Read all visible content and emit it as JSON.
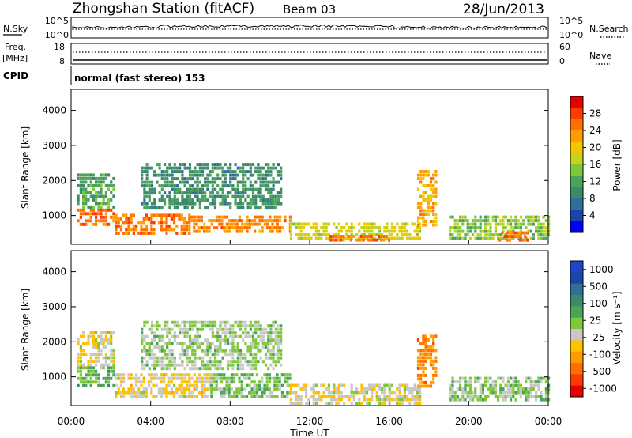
{
  "header": {
    "station": "Zhongshan Station (fitACF)",
    "beam": "Beam 03",
    "date": "28/Jun/2013"
  },
  "nsky_panel": {
    "left_label": "N.Sky",
    "right_label": "N.Search",
    "left_ticks": [
      "10^5",
      "10^0"
    ],
    "right_ticks": [
      "10^5",
      "10^0"
    ]
  },
  "freq_panel": {
    "left_label_1": "Freq.",
    "left_label_2": "[MHz]",
    "right_label": "Nave",
    "left_ticks": [
      "18",
      "8"
    ],
    "right_ticks": [
      "60",
      "0"
    ]
  },
  "cpid_panel": {
    "label": "CPID",
    "mode_text": "normal (fast stereo) 153"
  },
  "x_axis": {
    "title": "Time UT",
    "ticks": [
      "00:00",
      "04:00",
      "08:00",
      "12:00",
      "16:00",
      "20:00",
      "00:00"
    ]
  },
  "colors": {
    "power_scale": [
      "#0000ff",
      "#1a46a8",
      "#2f6f9a",
      "#3c8a66",
      "#4aa35a",
      "#7ec83a",
      "#c8d21e",
      "#f0c800",
      "#ff9c00",
      "#ff7000",
      "#ff3a00",
      "#e60000"
    ],
    "velocity_scale": [
      "#e60000",
      "#ff3a00",
      "#ff7000",
      "#ff9c00",
      "#ffc000",
      "#c8c8c8",
      "#7ec83a",
      "#4aa35a",
      "#3c8a66",
      "#2f6f9a",
      "#1a46a8",
      "#2244cc"
    ]
  },
  "chart_data": [
    {
      "type": "heatmap",
      "name": "power",
      "ylabel": "Slant Range [km]",
      "xlabel": "",
      "y_ticks": [
        "1000",
        "2000",
        "3000",
        "4000"
      ],
      "ylim": [
        180,
        4600
      ],
      "xlim_hours": [
        0,
        24
      ],
      "colorbar": {
        "label": "Power [dB]",
        "ticks": [
          "4",
          "8",
          "12",
          "16",
          "20",
          "24",
          "28"
        ],
        "range": [
          0,
          32
        ]
      },
      "regions": [
        {
          "t0": 0.3,
          "t1": 2.2,
          "r0": 700,
          "r1": 1200,
          "value": 26
        },
        {
          "t0": 0.3,
          "t1": 2.2,
          "r0": 1200,
          "r1": 2200,
          "value": 12
        },
        {
          "t0": 2.2,
          "t1": 6.0,
          "r0": 500,
          "r1": 1050,
          "value": 25
        },
        {
          "t0": 6.0,
          "t1": 11.0,
          "r0": 500,
          "r1": 1000,
          "value": 24
        },
        {
          "t0": 3.5,
          "t1": 10.5,
          "r0": 1200,
          "r1": 2500,
          "value": 10
        },
        {
          "t0": 11.0,
          "t1": 17.5,
          "r0": 300,
          "r1": 800,
          "value": 18
        },
        {
          "t0": 13.0,
          "t1": 16.0,
          "r0": 250,
          "r1": 450,
          "value": 26
        },
        {
          "t0": 17.4,
          "t1": 18.3,
          "r0": 700,
          "r1": 2300,
          "value": 22
        },
        {
          "t0": 19.0,
          "t1": 24.0,
          "r0": 300,
          "r1": 1000,
          "value": 15
        },
        {
          "t0": 21.5,
          "t1": 23.0,
          "r0": 250,
          "r1": 550,
          "value": 26
        }
      ]
    },
    {
      "type": "heatmap",
      "name": "velocity",
      "ylabel": "Slant Range [km]",
      "xlabel": "Time UT",
      "y_ticks": [
        "1000",
        "2000",
        "3000",
        "4000"
      ],
      "ylim": [
        180,
        4600
      ],
      "xlim_hours": [
        0,
        24
      ],
      "colorbar": {
        "label": "Velocity [m s⁻¹]",
        "ticks": [
          "1000",
          "500",
          "100",
          "25",
          "-25",
          "-100",
          "-500",
          "-1000"
        ],
        "range": [
          -1200,
          1200
        ]
      },
      "regions": [
        {
          "t0": 0.3,
          "t1": 2.2,
          "r0": 700,
          "r1": 1300,
          "value": 200
        },
        {
          "t0": 0.3,
          "t1": 2.2,
          "r0": 1300,
          "r1": 2300,
          "value": -150
        },
        {
          "t0": 2.2,
          "t1": 7.0,
          "r0": 400,
          "r1": 1100,
          "value": -200
        },
        {
          "t0": 7.0,
          "t1": 11.0,
          "r0": 400,
          "r1": 1100,
          "value": 150
        },
        {
          "t0": 3.5,
          "t1": 10.5,
          "r0": 1200,
          "r1": 2600,
          "value": 30
        },
        {
          "t0": 11.0,
          "t1": 17.5,
          "r0": 250,
          "r1": 800,
          "value": -150
        },
        {
          "t0": 17.4,
          "t1": 18.3,
          "r0": 700,
          "r1": 2200,
          "value": -600
        },
        {
          "t0": 19.0,
          "t1": 24.0,
          "r0": 300,
          "r1": 1000,
          "value": 60
        }
      ]
    }
  ]
}
